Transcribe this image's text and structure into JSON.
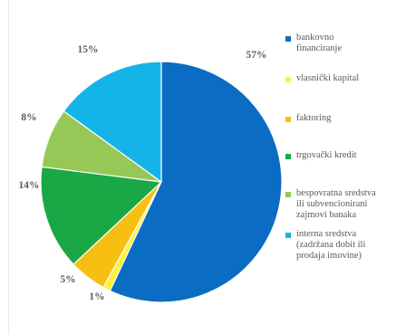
{
  "chart_data": {
    "type": "pie",
    "title": "",
    "legend_position": "right",
    "slices": [
      {
        "name": "bankovno\nfinanciranje",
        "value": 57,
        "label": "57%",
        "color": "#0a6cc2"
      },
      {
        "name": "vlasnički kapital",
        "value": 1,
        "label": "1%",
        "color": "#fbf436"
      },
      {
        "name": "faktoring",
        "value": 5,
        "label": "5%",
        "color": "#f8bf13"
      },
      {
        "name": "trgovački kredit",
        "value": 14,
        "label": "14%",
        "color": "#19a845"
      },
      {
        "name": "bespovratna sredstva\nili subvencionirani\nzajmovi banaka",
        "value": 8,
        "label": "8%",
        "color": "#97c757"
      },
      {
        "name": "interna sredstva\n(zadržana dobit ili\nprodaja imovine)",
        "value": 15,
        "label": "15%",
        "color": "#14b4e8"
      }
    ]
  }
}
